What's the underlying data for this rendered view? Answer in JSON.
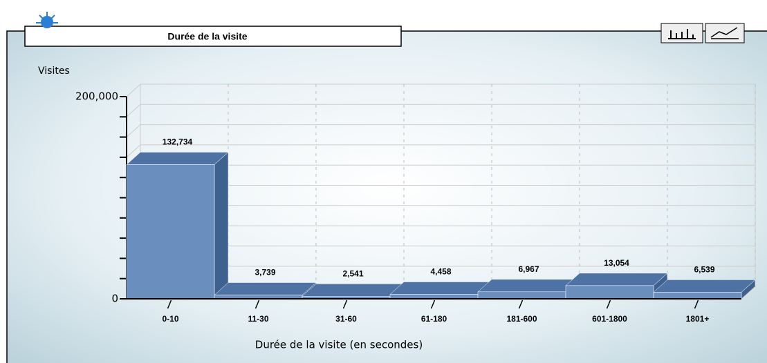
{
  "chart_data": {
    "type": "bar3d",
    "title": "Durée de la visite",
    "y_label": "Visites",
    "x_label": "Durée de la visite (en secondes)",
    "categories": [
      "0-10",
      "11-30",
      "31-60",
      "61-180",
      "181-600",
      "601-1800",
      "1801+"
    ],
    "values": [
      132734,
      3739,
      2541,
      4458,
      6967,
      13054,
      6539
    ],
    "value_labels": [
      "132,734",
      "3,739",
      "2,541",
      "4,458",
      "6,967",
      "13,054",
      "6,539"
    ],
    "color": "#6a8fbf",
    "ylim": [
      0,
      200000
    ],
    "yticks": [
      0,
      {
        "value": 200000,
        "label": "200,000"
      }
    ],
    "minor_yticks": [
      20000,
      40000,
      60000,
      80000,
      100000,
      120000,
      140000,
      160000,
      180000
    ],
    "grid": true
  }
}
